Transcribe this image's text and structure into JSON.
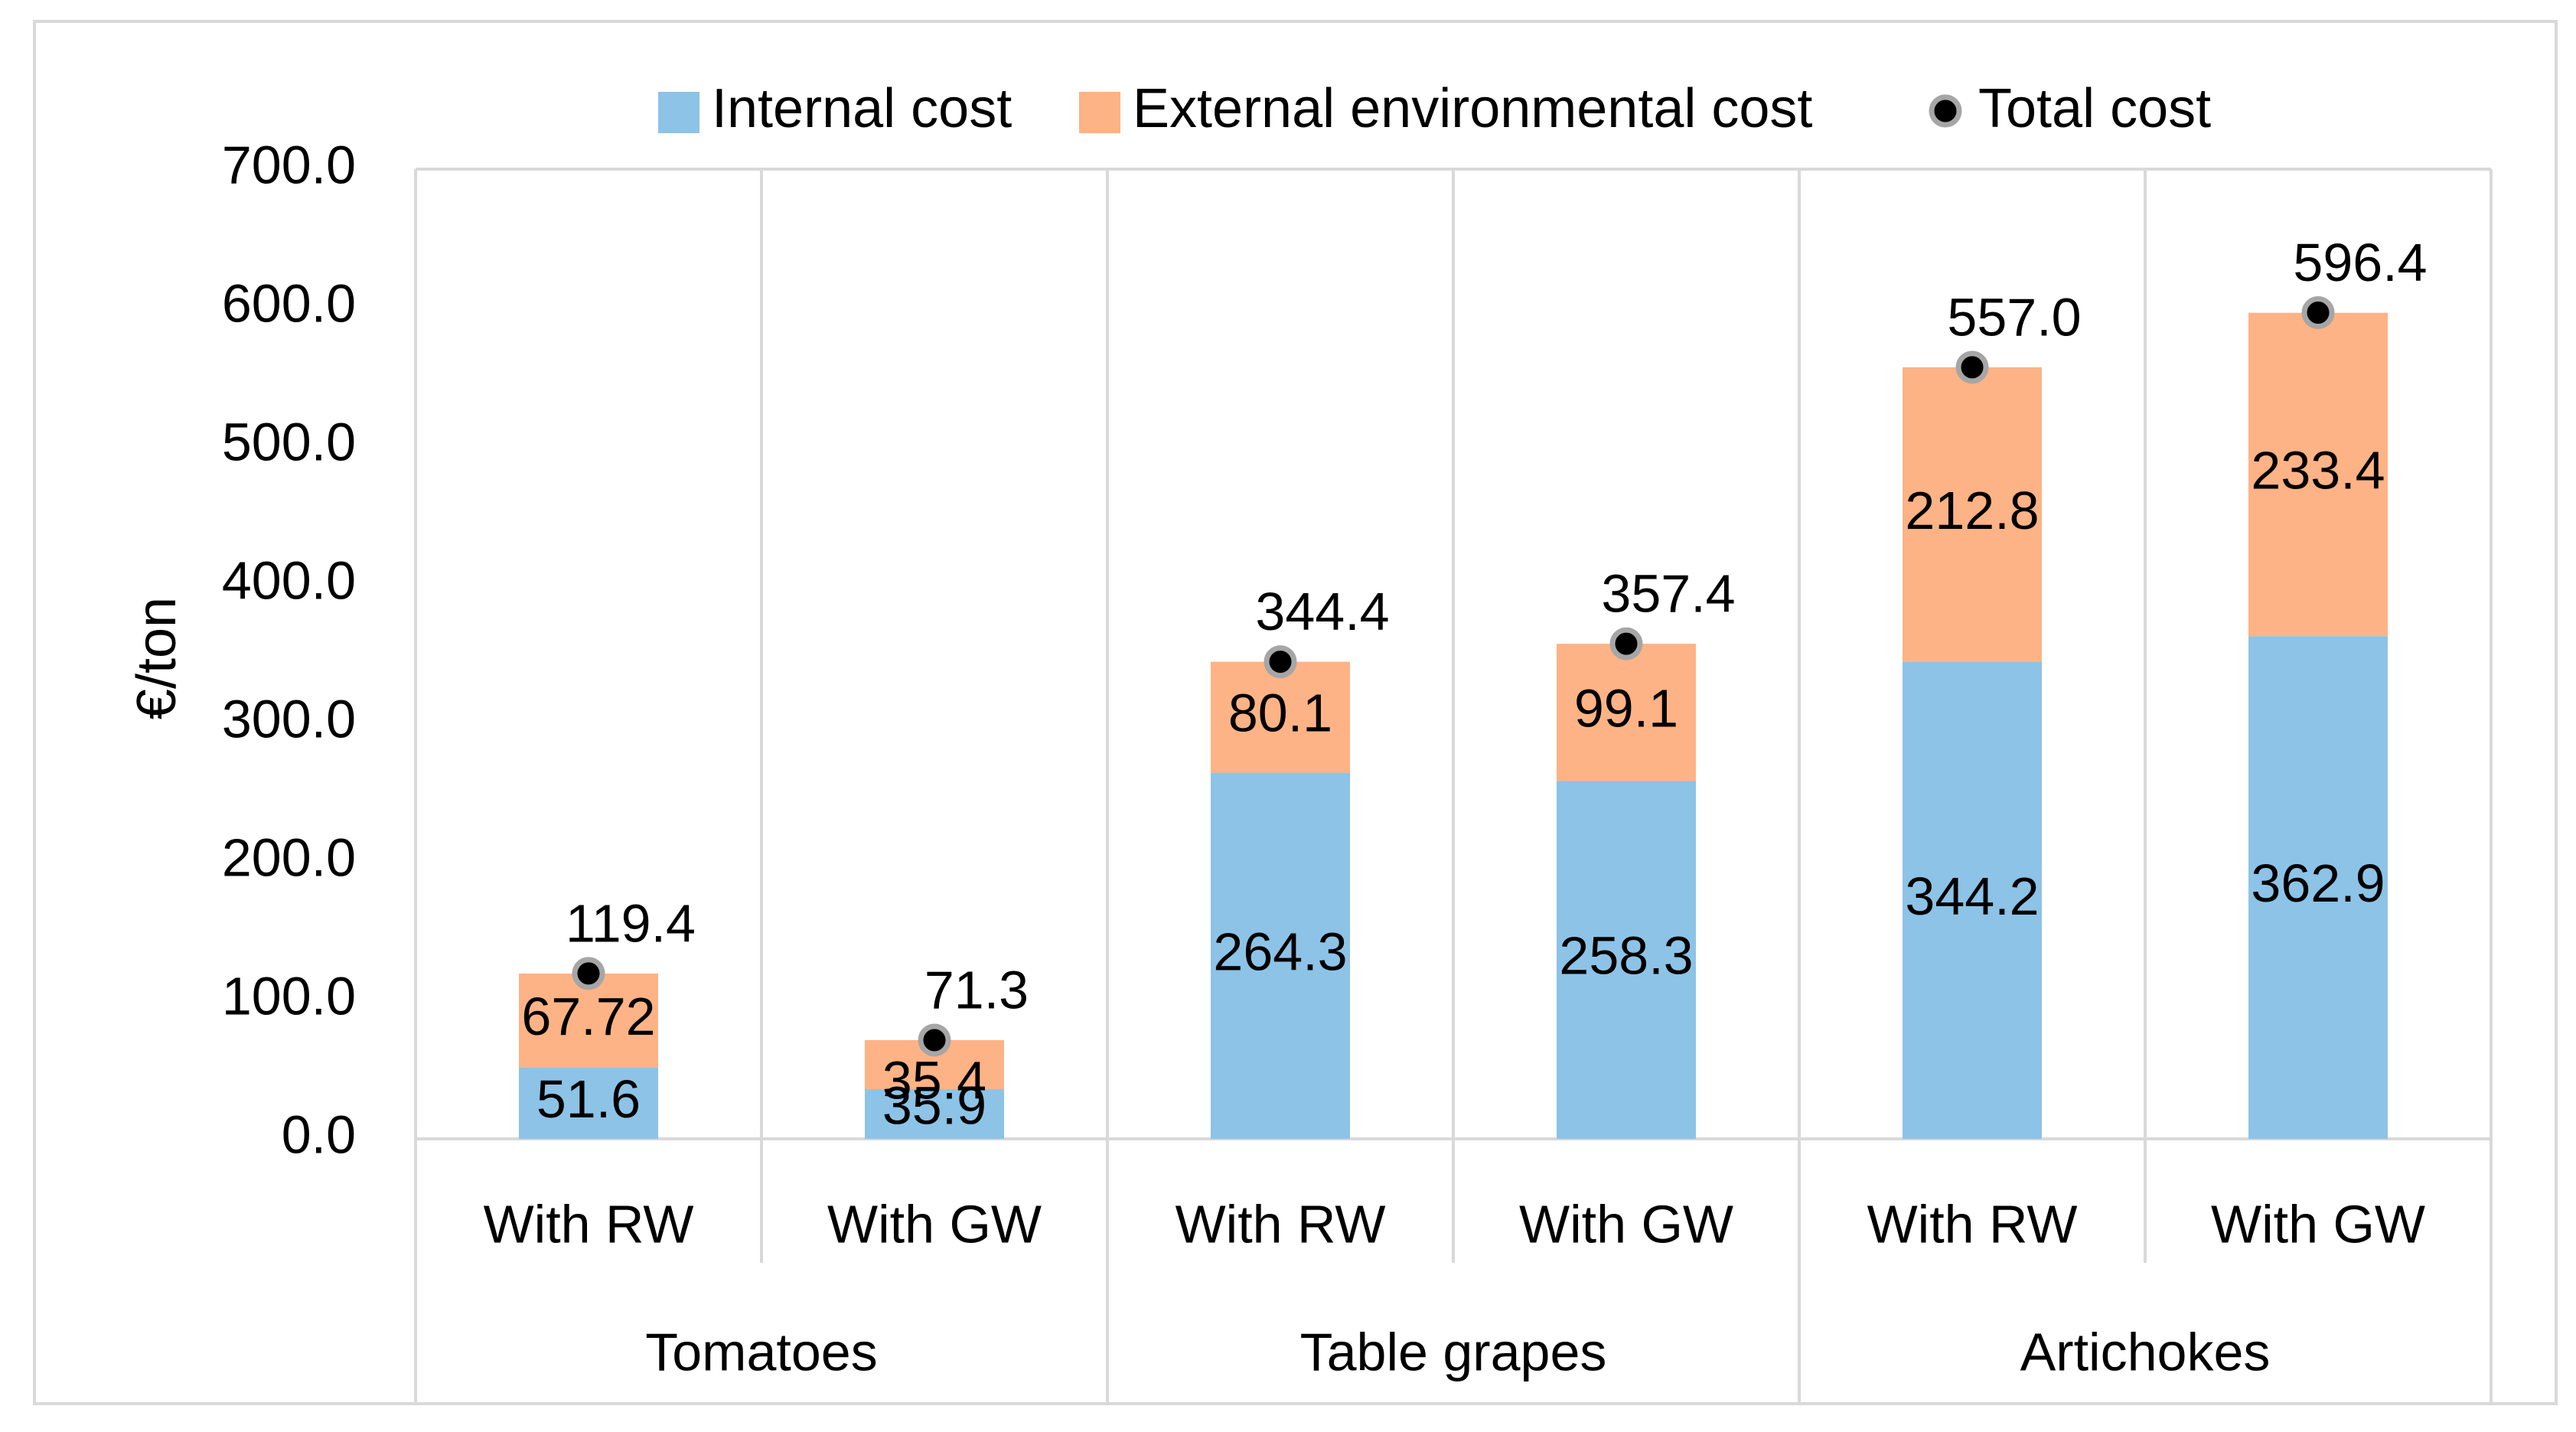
{
  "chart_data": {
    "type": "bar",
    "stacked": true,
    "ylabel": "€/ton",
    "ylim": [
      0,
      700
    ],
    "ytick_step": 100,
    "ytick_labels": [
      "0.0",
      "100.0",
      "200.0",
      "300.0",
      "400.0",
      "500.0",
      "600.0",
      "700.0"
    ],
    "grid": "vertical-category-separators",
    "legend_position": "top",
    "groups": [
      {
        "name": "Tomatoes",
        "categories": [
          "With RW",
          "With GW"
        ]
      },
      {
        "name": "Table grapes",
        "categories": [
          "With RW",
          "With GW"
        ]
      },
      {
        "name": "Artichokes",
        "categories": [
          "With RW",
          "With GW"
        ]
      }
    ],
    "categories": [
      "With RW",
      "With GW",
      "With RW",
      "With GW",
      "With RW",
      "With GW"
    ],
    "series": [
      {
        "name": "Internal cost",
        "kind": "bar",
        "color": "#8dc3e6",
        "values": [
          51.6,
          35.9,
          264.3,
          258.3,
          344.2,
          362.9
        ],
        "labels": [
          "51.6",
          "35.9",
          "264.3",
          "258.3",
          "344.2",
          "362.9"
        ]
      },
      {
        "name": "External environmental cost",
        "kind": "bar",
        "color": "#fdb385",
        "values": [
          67.72,
          35.4,
          80.1,
          99.1,
          212.8,
          233.4
        ],
        "labels": [
          "67.72",
          "35.4",
          "80.1",
          "99.1",
          "212.8",
          "233.4"
        ]
      },
      {
        "name": "Total cost",
        "kind": "marker",
        "color": "#000000",
        "values": [
          119.4,
          71.3,
          344.4,
          357.4,
          557.0,
          596.4
        ],
        "labels": [
          "119.4",
          "71.3",
          "344.4",
          "357.4",
          "557.0",
          "596.4"
        ]
      }
    ]
  }
}
